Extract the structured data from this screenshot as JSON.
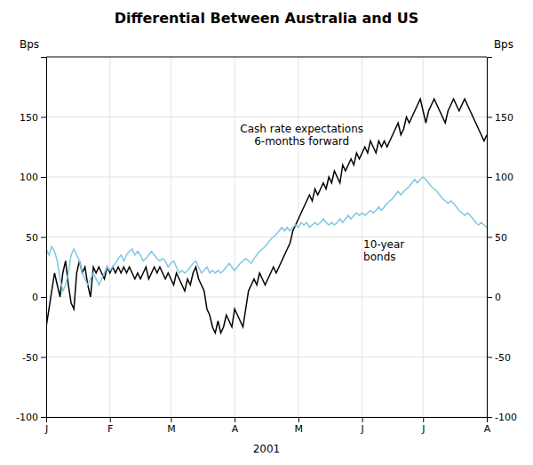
{
  "chart_data": {
    "type": "line",
    "title": "Differential Between Australia and US",
    "x_label": "2001",
    "y_label": "Bps",
    "y2_label": "Bps",
    "ylim": [
      -100,
      200
    ],
    "yticks": [
      -100,
      -50,
      0,
      50,
      100,
      150
    ],
    "y2lim": [
      -100,
      200
    ],
    "y2ticks": [
      -100,
      -50,
      0,
      50,
      100,
      150
    ],
    "grid": true,
    "annotations": [
      "Cash rate expectations\n6-months forward",
      "10-year\nbonds"
    ],
    "categories": [
      "J",
      null,
      null,
      null,
      null,
      null,
      null,
      null,
      null,
      null,
      null,
      null,
      null,
      null,
      null,
      null,
      null,
      null,
      null,
      null,
      null,
      null,
      null,
      "F",
      null,
      null,
      null,
      null,
      null,
      null,
      null,
      null,
      null,
      null,
      null,
      null,
      null,
      null,
      null,
      null,
      null,
      null,
      null,
      null,
      null,
      "M",
      null,
      null,
      null,
      null,
      null,
      null,
      null,
      null,
      null,
      null,
      null,
      null,
      null,
      null,
      null,
      null,
      null,
      null,
      null,
      null,
      null,
      null,
      "A",
      null,
      null,
      null,
      null,
      null,
      null,
      null,
      null,
      null,
      null,
      null,
      null,
      null,
      null,
      null,
      null,
      null,
      null,
      null,
      null,
      null,
      null,
      "M",
      null,
      null,
      null,
      null,
      null,
      null,
      null,
      null,
      null,
      null,
      null,
      null,
      null,
      null,
      null,
      null,
      null,
      null,
      null,
      null,
      null,
      null,
      "J",
      null,
      null,
      null,
      null,
      null,
      null,
      null,
      null,
      null,
      null,
      null,
      null,
      null,
      null,
      null,
      null,
      null,
      null,
      null,
      null,
      null,
      "J",
      null,
      null,
      null,
      null,
      null,
      null,
      null,
      null,
      null,
      null,
      null,
      null,
      null,
      null,
      null,
      null,
      null,
      null,
      null,
      null,
      null,
      null,
      "A"
    ],
    "series": [
      {
        "color": "#000000",
        "values": [
          -25,
          -10,
          5,
          20,
          10,
          0,
          20,
          30,
          10,
          -5,
          -10,
          20,
          30,
          20,
          25,
          10,
          0,
          25,
          20,
          25,
          20,
          15,
          25,
          20,
          25,
          20,
          25,
          20,
          25,
          20,
          25,
          20,
          15,
          20,
          15,
          20,
          25,
          15,
          20,
          25,
          20,
          25,
          20,
          15,
          20,
          15,
          10,
          20,
          15,
          10,
          5,
          15,
          10,
          20,
          25,
          15,
          10,
          5,
          -10,
          -15,
          -25,
          -30,
          -20,
          -30,
          -25,
          -15,
          -20,
          -25,
          -10,
          -15,
          -20,
          -25,
          -10,
          5,
          10,
          15,
          10,
          20,
          15,
          10,
          15,
          20,
          25,
          20,
          25,
          30,
          35,
          40,
          45,
          55,
          60,
          65,
          70,
          75,
          80,
          85,
          80,
          90,
          85,
          90,
          95,
          90,
          100,
          95,
          105,
          100,
          95,
          110,
          105,
          110,
          115,
          110,
          120,
          115,
          120,
          125,
          120,
          130,
          125,
          120,
          130,
          125,
          130,
          125,
          130,
          135,
          140,
          145,
          135,
          140,
          150,
          145,
          150,
          155,
          160,
          165,
          155,
          145,
          155,
          160,
          165,
          160,
          155,
          150,
          145,
          155,
          160,
          165,
          160,
          155,
          160,
          165,
          160,
          155,
          150,
          145,
          140,
          135,
          130,
          135
        ]
      },
      {
        "color": "#7ec8e3",
        "values": [
          40,
          35,
          42,
          38,
          30,
          15,
          5,
          10,
          20,
          35,
          40,
          35,
          30,
          20,
          15,
          10,
          15,
          20,
          15,
          10,
          15,
          20,
          25,
          22,
          25,
          28,
          32,
          35,
          30,
          35,
          38,
          40,
          35,
          38,
          35,
          30,
          32,
          35,
          38,
          35,
          32,
          30,
          32,
          30,
          25,
          28,
          30,
          25,
          20,
          22,
          20,
          22,
          25,
          28,
          30,
          25,
          20,
          22,
          25,
          20,
          22,
          20,
          22,
          20,
          22,
          25,
          28,
          25,
          22,
          25,
          28,
          30,
          32,
          30,
          28,
          32,
          35,
          38,
          40,
          42,
          45,
          48,
          50,
          52,
          55,
          58,
          55,
          58,
          55,
          58,
          60,
          58,
          62,
          60,
          62,
          58,
          60,
          62,
          60,
          62,
          65,
          62,
          60,
          62,
          60,
          62,
          65,
          62,
          65,
          68,
          65,
          68,
          70,
          68,
          70,
          68,
          70,
          72,
          70,
          72,
          75,
          72,
          75,
          78,
          80,
          82,
          85,
          88,
          85,
          88,
          90,
          92,
          95,
          98,
          95,
          98,
          100,
          98,
          95,
          92,
          90,
          88,
          85,
          82,
          80,
          78,
          80,
          78,
          75,
          72,
          70,
          68,
          70,
          68,
          65,
          62,
          60,
          62,
          60,
          58
        ]
      }
    ]
  }
}
